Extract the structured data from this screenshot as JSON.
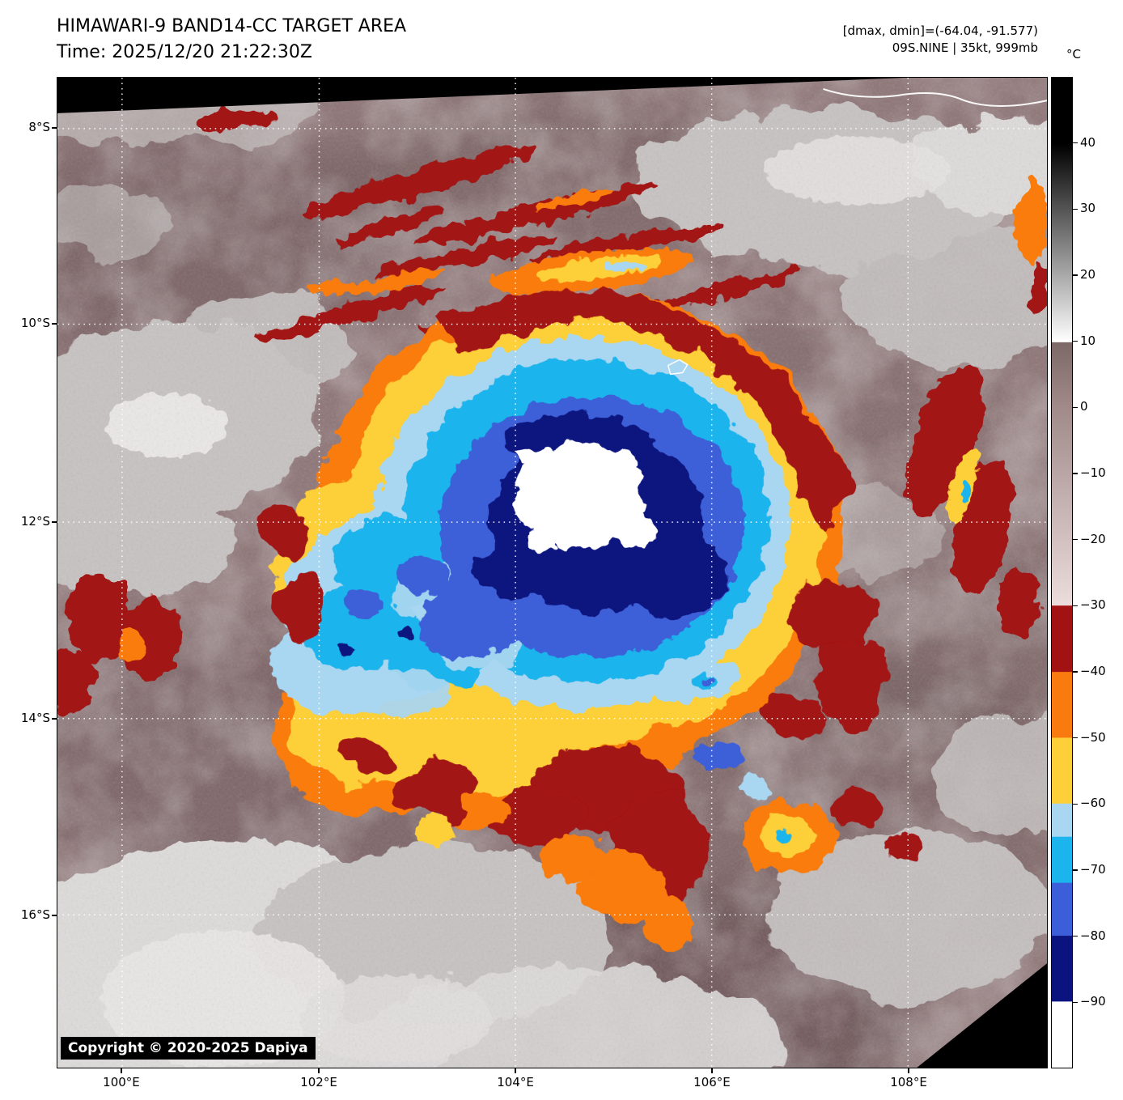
{
  "header": {
    "title": "HIMAWARI-9 BAND14-CC TARGET AREA",
    "time_line": "Time: 2025/12/20 21:22:30Z",
    "dmax_dmin": "[dmax, dmin]=(-64.04, -91.577)",
    "storm_info": "09S.NINE | 35kt, 999mb"
  },
  "axes": {
    "lat_labels": [
      "8°S",
      "10°S",
      "12°S",
      "14°S",
      "16°S"
    ],
    "lon_labels": [
      "100°E",
      "102°E",
      "104°E",
      "106°E",
      "108°E"
    ]
  },
  "colorbar": {
    "unit_label": "°C",
    "tick_labels": [
      "40",
      "30",
      "20",
      "10",
      "0",
      "−10",
      "−20",
      "−30",
      "−40",
      "−50",
      "−60",
      "−70",
      "−80",
      "−90"
    ],
    "stops": [
      {
        "p": 0,
        "c": "black"
      },
      {
        "p": 6.7,
        "c": "black"
      },
      {
        "p": 26.7,
        "c": "white"
      },
      {
        "p": 26.75,
        "c": "mauve_dark"
      },
      {
        "p": 33.3,
        "c": "mauve_mid"
      },
      {
        "p": 53.3,
        "c": "pink_pale"
      },
      {
        "p": 53.35,
        "c": "red_dark"
      },
      {
        "p": 60,
        "c": "red_dark"
      },
      {
        "p": 60.05,
        "c": "orange"
      },
      {
        "p": 66.65,
        "c": "orange"
      },
      {
        "p": 66.7,
        "c": "yellow"
      },
      {
        "p": 73.3,
        "c": "yellow"
      },
      {
        "p": 73.35,
        "c": "blue_pale"
      },
      {
        "p": 76.65,
        "c": "blue_pale"
      },
      {
        "p": 76.7,
        "c": "cyan"
      },
      {
        "p": 81.3,
        "c": "cyan"
      },
      {
        "p": 81.35,
        "c": "blue_royal"
      },
      {
        "p": 86.65,
        "c": "blue_royal"
      },
      {
        "p": 86.7,
        "c": "navy"
      },
      {
        "p": 93.3,
        "c": "navy"
      },
      {
        "p": 93.35,
        "c": "white"
      },
      {
        "p": 100,
        "c": "white"
      }
    ]
  },
  "footer": {
    "copyright": "Copyright © 2020-2025 Dapiya"
  },
  "palette": {
    "black": "#000000",
    "white": "#ffffff",
    "warm_base": "#8f7678",
    "warm_dark": "#6b5456",
    "cloud_gray": "#c7c3c2",
    "cloud_light": "#dedcdb",
    "mauve_dark": "#7d6868",
    "mauve_mid": "#a08a8a",
    "pink_pale": "#ecdcdc",
    "red_dark": "#a31212",
    "orange": "#f97b10",
    "yellow": "#fdcf38",
    "blue_pale": "#a9d6f0",
    "cyan": "#1cb4ec",
    "blue_royal": "#3c5ed8",
    "navy": "#0b137e"
  }
}
